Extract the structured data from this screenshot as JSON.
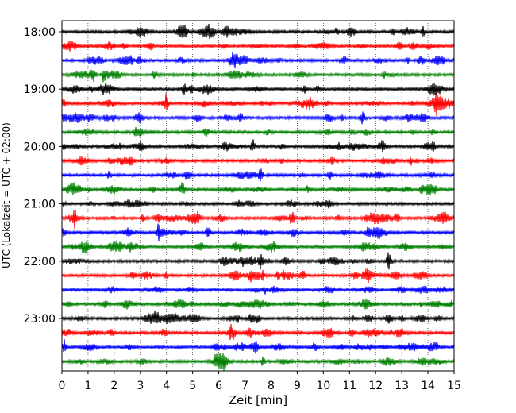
{
  "chart_data": {
    "type": "line",
    "title": "",
    "xlabel": "Zeit  [min]",
    "ylabel": "UTC (Lokalzeit = UTC + 02:00)",
    "xlim": [
      0,
      15
    ],
    "x_ticks": [
      "0",
      "1",
      "2",
      "3",
      "4",
      "5",
      "6",
      "7",
      "8",
      "9",
      "10",
      "11",
      "12",
      "13",
      "14",
      "15"
    ],
    "y_tick_labels": [
      "18:00",
      "19:00",
      "20:00",
      "21:00",
      "22:00",
      "23:00"
    ],
    "grid": "vertical-dotted",
    "trace_colors": [
      "#000000",
      "#ff0000",
      "#0000ff",
      "#008000"
    ],
    "start_time": "18:00",
    "end_time": "23:45",
    "minutes_per_row": 15,
    "notable_events": [
      {
        "time": "18:00",
        "minute": 13.8
      },
      {
        "time": "18:45",
        "minute": 1.2
      },
      {
        "time": "19:00",
        "minute": 4.7
      },
      {
        "time": "19:15",
        "minute": 4.0
      },
      {
        "time": "19:30",
        "minute": 11.5
      },
      {
        "time": "20:00",
        "minute": 7.3
      },
      {
        "time": "20:00",
        "minute": 14.2
      },
      {
        "time": "20:30",
        "minute": 7.6
      },
      {
        "time": "20:45",
        "minute": 4.6
      },
      {
        "time": "21:15",
        "minute": 0.5
      },
      {
        "time": "21:15",
        "minute": 8.8
      },
      {
        "time": "21:30",
        "minute": 3.7
      },
      {
        "time": "21:30",
        "minute": 5.6
      },
      {
        "time": "22:00",
        "minute": 12.5
      },
      {
        "time": "22:00",
        "minute": 7.6
      },
      {
        "time": "23:15",
        "minute": 6.5
      },
      {
        "time": "23:30",
        "minute": 0.1
      }
    ]
  }
}
